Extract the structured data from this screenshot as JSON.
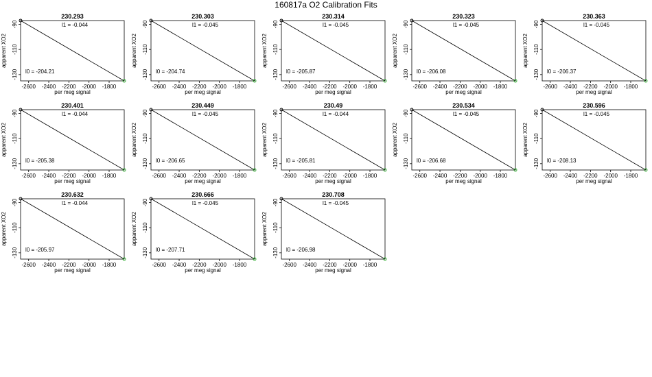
{
  "page_title": "160817a   O2 Calibration Fits",
  "colors": {
    "fit_line": "#000000",
    "point": "#22aa22",
    "frame": "#000000"
  },
  "chart_data": [
    {
      "type": "scatter",
      "title": "230.293",
      "xlabel": "per meg signal",
      "ylabel": "apparent XO2",
      "xlim": [
        -2680,
        -1650
      ],
      "ylim": [
        -135,
        -87
      ],
      "xticks": [
        -2600,
        -2400,
        -2200,
        -2000,
        -1800
      ],
      "yticks": [
        -90,
        -110,
        -130
      ],
      "x": [
        -2680,
        -1650
      ],
      "y": [
        -87,
        -135
      ],
      "annotations": {
        "l1": "l1 =  -0.044",
        "l0": "l0 =  -204.21"
      }
    },
    {
      "type": "scatter",
      "title": "230.303",
      "xlabel": "per meg signal",
      "ylabel": "apparent XO2",
      "xlim": [
        -2680,
        -1650
      ],
      "ylim": [
        -135,
        -87
      ],
      "xticks": [
        -2600,
        -2400,
        -2200,
        -2000,
        -1800
      ],
      "yticks": [
        -90,
        -110,
        -130
      ],
      "x": [
        -2680,
        -1650
      ],
      "y": [
        -87,
        -135
      ],
      "annotations": {
        "l1": "l1 =  -0.045",
        "l0": "l0 =  -204.74"
      }
    },
    {
      "type": "scatter",
      "title": "230.314",
      "xlabel": "per meg signal",
      "ylabel": "apparent XO2",
      "xlim": [
        -2680,
        -1650
      ],
      "ylim": [
        -135,
        -87
      ],
      "xticks": [
        -2600,
        -2400,
        -2200,
        -2000,
        -1800
      ],
      "yticks": [
        -90,
        -110,
        -130
      ],
      "x": [
        -2680,
        -1650
      ],
      "y": [
        -87,
        -135
      ],
      "annotations": {
        "l1": "l1 =  -0.045",
        "l0": "l0 =  -205.87"
      }
    },
    {
      "type": "scatter",
      "title": "230.323",
      "xlabel": "per meg signal",
      "ylabel": "apparent XO2",
      "xlim": [
        -2680,
        -1650
      ],
      "ylim": [
        -135,
        -87
      ],
      "xticks": [
        -2600,
        -2400,
        -2200,
        -2000,
        -1800
      ],
      "yticks": [
        -90,
        -110,
        -130
      ],
      "x": [
        -2680,
        -1650
      ],
      "y": [
        -87,
        -135
      ],
      "annotations": {
        "l1": "l1 =  -0.045",
        "l0": "l0 =  -206.08"
      }
    },
    {
      "type": "scatter",
      "title": "230.363",
      "xlabel": "per meg signal",
      "ylabel": "apparent XO2",
      "xlim": [
        -2680,
        -1650
      ],
      "ylim": [
        -135,
        -87
      ],
      "xticks": [
        -2600,
        -2400,
        -2200,
        -2000,
        -1800
      ],
      "yticks": [
        -90,
        -110,
        -130
      ],
      "x": [
        -2680,
        -1650
      ],
      "y": [
        -87,
        -135
      ],
      "annotations": {
        "l1": "l1 =  -0.045",
        "l0": "l0 =  -206.37"
      }
    },
    {
      "type": "scatter",
      "title": "230.401",
      "xlabel": "per meg signal",
      "ylabel": "apparent XO2",
      "xlim": [
        -2680,
        -1650
      ],
      "ylim": [
        -135,
        -87
      ],
      "xticks": [
        -2600,
        -2400,
        -2200,
        -2000,
        -1800
      ],
      "yticks": [
        -90,
        -110,
        -130
      ],
      "x": [
        -2680,
        -1650
      ],
      "y": [
        -87,
        -135
      ],
      "annotations": {
        "l1": "l1 =  -0.044",
        "l0": "l0 =  -205.38"
      }
    },
    {
      "type": "scatter",
      "title": "230.449",
      "xlabel": "per meg signal",
      "ylabel": "apparent XO2",
      "xlim": [
        -2680,
        -1650
      ],
      "ylim": [
        -135,
        -87
      ],
      "xticks": [
        -2600,
        -2400,
        -2200,
        -2000,
        -1800
      ],
      "yticks": [
        -90,
        -110,
        -130
      ],
      "x": [
        -2680,
        -1650
      ],
      "y": [
        -87,
        -135
      ],
      "annotations": {
        "l1": "l1 =  -0.045",
        "l0": "l0 =  -206.65"
      }
    },
    {
      "type": "scatter",
      "title": "230.49",
      "xlabel": "per meg signal",
      "ylabel": "apparent XO2",
      "xlim": [
        -2680,
        -1650
      ],
      "ylim": [
        -135,
        -87
      ],
      "xticks": [
        -2600,
        -2400,
        -2200,
        -2000,
        -1800
      ],
      "yticks": [
        -90,
        -110,
        -130
      ],
      "x": [
        -2680,
        -1650
      ],
      "y": [
        -87,
        -135
      ],
      "annotations": {
        "l1": "l1 =  -0.044",
        "l0": "l0 =  -205.81"
      }
    },
    {
      "type": "scatter",
      "title": "230.534",
      "xlabel": "per meg signal",
      "ylabel": "apparent XO2",
      "xlim": [
        -2680,
        -1650
      ],
      "ylim": [
        -135,
        -87
      ],
      "xticks": [
        -2600,
        -2400,
        -2200,
        -2000,
        -1800
      ],
      "yticks": [
        -90,
        -110,
        -130
      ],
      "x": [
        -2680,
        -1650
      ],
      "y": [
        -87,
        -135
      ],
      "annotations": {
        "l1": "l1 =  -0.045",
        "l0": "l0 =  -206.68"
      }
    },
    {
      "type": "scatter",
      "title": "230.596",
      "xlabel": "per meg signal",
      "ylabel": "apparent XO2",
      "xlim": [
        -2680,
        -1650
      ],
      "ylim": [
        -135,
        -87
      ],
      "xticks": [
        -2600,
        -2400,
        -2200,
        -2000,
        -1800
      ],
      "yticks": [
        -90,
        -110,
        -130
      ],
      "x": [
        -2680,
        -1650
      ],
      "y": [
        -87,
        -135
      ],
      "annotations": {
        "l1": "l1 =  -0.045",
        "l0": "l0 =  -208.13"
      }
    },
    {
      "type": "scatter",
      "title": "230.632",
      "xlabel": "per meg signal",
      "ylabel": "apparent XO2",
      "xlim": [
        -2680,
        -1650
      ],
      "ylim": [
        -135,
        -87
      ],
      "xticks": [
        -2600,
        -2400,
        -2200,
        -2000,
        -1800
      ],
      "yticks": [
        -90,
        -110,
        -130
      ],
      "x": [
        -2680,
        -1650
      ],
      "y": [
        -87,
        -135
      ],
      "annotations": {
        "l1": "l1 =  -0.044",
        "l0": "l0 =  -205.97"
      }
    },
    {
      "type": "scatter",
      "title": "230.666",
      "xlabel": "per meg signal",
      "ylabel": "apparent XO2",
      "xlim": [
        -2680,
        -1650
      ],
      "ylim": [
        -135,
        -87
      ],
      "xticks": [
        -2600,
        -2400,
        -2200,
        -2000,
        -1800
      ],
      "yticks": [
        -90,
        -110,
        -130
      ],
      "x": [
        -2680,
        -1650
      ],
      "y": [
        -87,
        -135
      ],
      "annotations": {
        "l1": "l1 =  -0.045",
        "l0": "l0 =  -207.71"
      }
    },
    {
      "type": "scatter",
      "title": "230.708",
      "xlabel": "per meg signal",
      "ylabel": "apparent XO2",
      "xlim": [
        -2680,
        -1650
      ],
      "ylim": [
        -135,
        -87
      ],
      "xticks": [
        -2600,
        -2400,
        -2200,
        -2000,
        -1800
      ],
      "yticks": [
        -90,
        -110,
        -130
      ],
      "x": [
        -2680,
        -1650
      ],
      "y": [
        -87,
        -135
      ],
      "annotations": {
        "l1": "l1 =  -0.045",
        "l0": "l0 =  -206.98"
      }
    }
  ]
}
